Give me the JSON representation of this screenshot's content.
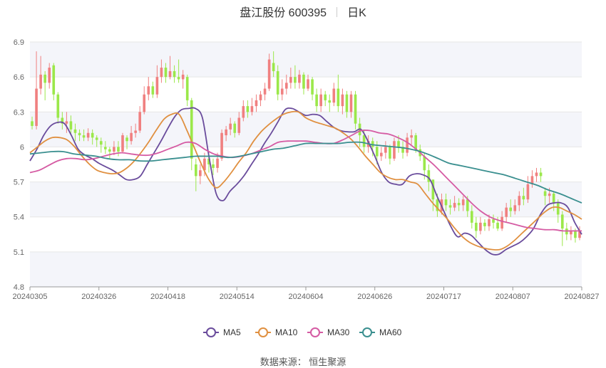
{
  "header": {
    "stock_name_code": "盘江股份 600395",
    "period": "日K"
  },
  "footer": {
    "source": "数据来源： 恒生聚源"
  },
  "colors": {
    "up": "#f08080",
    "down": "#9be84a",
    "ma5": "#6a4c9c",
    "ma10": "#e09040",
    "ma30": "#d55ba3",
    "ma60": "#3a8f8f"
  },
  "chart_data": {
    "type": "candlestick",
    "ylim": [
      4.8,
      6.9
    ],
    "yticks": [
      4.8,
      5.1,
      5.4,
      5.7,
      6,
      6.3,
      6.6,
      6.9
    ],
    "xticks": [
      "20240305",
      "20240326",
      "20240418",
      "20240514",
      "20240604",
      "20240626",
      "20240717",
      "20240807",
      "20240827"
    ],
    "legend": [
      "MA5",
      "MA10",
      "MA30",
      "MA60"
    ],
    "candles": [
      [
        6.22,
        6.18,
        6.26,
        6.15
      ],
      [
        6.18,
        6.5,
        6.82,
        6.15
      ],
      [
        6.5,
        6.62,
        6.78,
        6.45
      ],
      [
        6.62,
        6.55,
        6.65,
        6.4
      ],
      [
        6.55,
        6.68,
        6.72,
        6.5
      ],
      [
        6.7,
        6.45,
        6.72,
        6.4
      ],
      [
        6.45,
        6.25,
        6.47,
        6.2
      ],
      [
        6.25,
        6.2,
        6.3,
        6.15
      ],
      [
        6.2,
        6.22,
        6.3,
        6.12
      ],
      [
        6.22,
        6.15,
        6.27,
        6.1
      ],
      [
        6.15,
        6.12,
        6.2,
        6.05
      ],
      [
        6.12,
        6.1,
        6.15,
        6.05
      ],
      [
        6.1,
        6.08,
        6.15,
        6.05
      ],
      [
        6.08,
        6.12,
        6.16,
        6.05
      ],
      [
        6.12,
        6.08,
        6.15,
        6.02
      ],
      [
        6.08,
        6.06,
        6.1,
        6.0
      ],
      [
        6.05,
        6.02,
        6.08,
        5.95
      ],
      [
        6.0,
        5.98,
        6.05,
        5.94
      ],
      [
        5.98,
        5.96,
        6.0,
        5.9
      ],
      [
        5.96,
        6.0,
        6.05,
        5.93
      ],
      [
        6.0,
        5.96,
        6.05,
        5.92
      ],
      [
        5.96,
        6.1,
        6.12,
        5.95
      ],
      [
        6.08,
        6.05,
        6.1,
        5.98
      ],
      [
        6.05,
        6.12,
        6.18,
        6.02
      ],
      [
        6.12,
        6.14,
        6.2,
        6.08
      ],
      [
        6.14,
        6.3,
        6.35,
        6.12
      ],
      [
        6.3,
        6.45,
        6.52,
        6.28
      ],
      [
        6.45,
        6.52,
        6.6,
        6.4
      ],
      [
        6.52,
        6.45,
        6.56,
        6.42
      ],
      [
        6.45,
        6.6,
        6.7,
        6.42
      ],
      [
        6.6,
        6.68,
        6.75,
        6.55
      ],
      [
        6.68,
        6.6,
        6.72,
        6.55
      ],
      [
        6.6,
        6.65,
        6.78,
        6.58
      ],
      [
        6.65,
        6.6,
        6.7,
        6.55
      ],
      [
        6.6,
        6.58,
        6.75,
        6.55
      ],
      [
        6.58,
        6.62,
        6.66,
        6.5
      ],
      [
        6.6,
        6.4,
        6.62,
        6.35
      ],
      [
        6.4,
        5.9,
        6.42,
        5.8
      ],
      [
        5.85,
        5.75,
        5.9,
        5.62
      ],
      [
        5.75,
        5.8,
        5.85,
        5.68
      ],
      [
        5.8,
        5.9,
        5.95,
        5.75
      ],
      [
        5.9,
        5.85,
        5.95,
        5.78
      ],
      [
        5.85,
        5.82,
        5.9,
        5.76
      ],
      [
        5.82,
        5.9,
        5.95,
        5.78
      ],
      [
        5.9,
        6.12,
        6.15,
        5.88
      ],
      [
        6.1,
        6.15,
        6.18,
        6.05
      ],
      [
        6.15,
        6.2,
        6.25,
        6.1
      ],
      [
        6.2,
        6.12,
        6.22,
        6.08
      ],
      [
        6.12,
        6.25,
        6.3,
        6.1
      ],
      [
        6.25,
        6.35,
        6.4,
        6.22
      ],
      [
        6.35,
        6.3,
        6.4,
        6.25
      ],
      [
        6.3,
        6.35,
        6.42,
        6.27
      ],
      [
        6.35,
        6.4,
        6.45,
        6.3
      ],
      [
        6.4,
        6.45,
        6.48,
        6.35
      ],
      [
        6.45,
        6.5,
        6.55,
        6.4
      ],
      [
        6.5,
        6.75,
        6.8,
        6.48
      ],
      [
        6.72,
        6.65,
        6.82,
        6.6
      ],
      [
        6.65,
        6.45,
        6.7,
        6.4
      ],
      [
        6.45,
        6.5,
        6.58,
        6.4
      ],
      [
        6.5,
        6.55,
        6.62,
        6.45
      ],
      [
        6.55,
        6.6,
        6.68,
        6.5
      ],
      [
        6.6,
        6.55,
        6.7,
        6.5
      ],
      [
        6.55,
        6.62,
        6.66,
        6.5
      ],
      [
        6.62,
        6.5,
        6.64,
        6.45
      ],
      [
        6.5,
        6.58,
        6.62,
        6.48
      ],
      [
        6.58,
        6.45,
        6.6,
        6.4
      ],
      [
        6.45,
        6.35,
        6.5,
        6.3
      ],
      [
        6.35,
        6.45,
        6.5,
        6.3
      ],
      [
        6.45,
        6.4,
        6.48,
        6.35
      ],
      [
        6.4,
        6.38,
        6.45,
        6.3
      ],
      [
        6.38,
        6.5,
        6.55,
        6.35
      ],
      [
        6.5,
        6.35,
        6.62,
        6.3
      ],
      [
        6.35,
        6.45,
        6.5,
        6.28
      ],
      [
        6.45,
        6.3,
        6.48,
        6.25
      ],
      [
        6.3,
        6.45,
        6.48,
        6.25
      ],
      [
        6.45,
        6.2,
        6.48,
        6.15
      ],
      [
        6.2,
        6.1,
        6.25,
        6.0
      ],
      [
        6.1,
        6.0,
        6.15,
        5.95
      ],
      [
        6.0,
        6.05,
        6.1,
        5.95
      ],
      [
        6.05,
        6.0,
        6.08,
        5.92
      ],
      [
        6.0,
        5.92,
        6.05,
        5.85
      ],
      [
        5.92,
        5.95,
        6.0,
        5.88
      ],
      [
        5.95,
        6.0,
        6.05,
        5.9
      ],
      [
        6.0,
        5.9,
        6.02,
        5.85
      ],
      [
        5.9,
        6.05,
        6.08,
        5.88
      ],
      [
        6.05,
        6.0,
        6.1,
        5.95
      ],
      [
        6.0,
        5.95,
        6.05,
        5.9
      ],
      [
        5.95,
        6.08,
        6.12,
        5.92
      ],
      [
        6.08,
        6.1,
        6.15,
        6.02
      ],
      [
        6.1,
        5.98,
        6.12,
        5.95
      ],
      [
        5.98,
        5.92,
        6.02,
        5.88
      ],
      [
        5.92,
        5.8,
        5.95,
        5.72
      ],
      [
        5.8,
        5.7,
        5.85,
        5.62
      ],
      [
        5.72,
        5.55,
        5.72,
        5.45
      ],
      [
        5.55,
        5.45,
        5.6,
        5.4
      ],
      [
        5.45,
        5.55,
        5.6,
        5.42
      ],
      [
        5.55,
        5.5,
        5.6,
        5.45
      ],
      [
        5.5,
        5.48,
        5.55,
        5.42
      ],
      [
        5.48,
        5.52,
        5.58,
        5.45
      ],
      [
        5.52,
        5.5,
        5.56,
        5.45
      ],
      [
        5.5,
        5.55,
        5.58,
        5.45
      ],
      [
        5.55,
        5.45,
        5.58,
        5.4
      ],
      [
        5.45,
        5.35,
        5.5,
        5.3
      ],
      [
        5.35,
        5.28,
        5.4,
        5.22
      ],
      [
        5.28,
        5.35,
        5.4,
        5.25
      ],
      [
        5.35,
        5.32,
        5.38,
        5.28
      ],
      [
        5.32,
        5.38,
        5.42,
        5.28
      ],
      [
        5.38,
        5.35,
        5.42,
        5.3
      ],
      [
        5.35,
        5.3,
        5.4,
        5.28
      ],
      [
        5.3,
        5.4,
        5.45,
        5.28
      ],
      [
        5.4,
        5.48,
        5.52,
        5.35
      ],
      [
        5.48,
        5.45,
        5.55,
        5.4
      ],
      [
        5.45,
        5.5,
        5.55,
        5.42
      ],
      [
        5.5,
        5.58,
        5.62,
        5.45
      ],
      [
        5.58,
        5.55,
        5.65,
        5.5
      ],
      [
        5.55,
        5.68,
        5.75,
        5.52
      ],
      [
        5.68,
        5.75,
        5.8,
        5.65
      ],
      [
        5.75,
        5.78,
        5.82,
        5.7
      ],
      [
        5.78,
        5.75,
        5.82,
        5.7
      ],
      [
        5.62,
        5.58,
        5.65,
        5.5
      ],
      [
        5.58,
        5.6,
        5.65,
        5.52
      ],
      [
        5.6,
        5.52,
        5.62,
        5.45
      ],
      [
        5.52,
        5.42,
        5.55,
        5.35
      ],
      [
        5.42,
        5.3,
        5.45,
        5.15
      ],
      [
        5.3,
        5.25,
        5.35,
        5.2
      ],
      [
        5.25,
        5.28,
        5.32,
        5.2
      ],
      [
        5.28,
        5.22,
        5.3,
        5.18
      ],
      [
        5.22,
        5.28,
        5.32,
        5.2
      ]
    ],
    "series": [
      {
        "name": "MA5",
        "values": [
          5.88,
          5.98,
          6.1,
          6.18,
          6.21,
          6.2,
          6.1,
          5.98,
          5.93,
          5.9,
          5.86,
          5.83,
          5.8,
          5.76,
          5.72,
          5.72,
          5.75,
          5.85,
          5.95,
          6.05,
          6.16,
          6.26,
          6.32,
          6.33,
          6.33,
          6.25,
          5.9,
          5.6,
          5.54,
          5.62,
          5.68,
          5.75,
          5.84,
          5.93,
          6.03,
          6.12,
          6.22,
          6.32,
          6.33,
          6.3,
          6.27,
          6.28,
          6.27,
          6.22,
          6.17,
          6.14,
          6.13,
          6.13,
          6.15,
          6.05,
          5.92,
          5.78,
          5.7,
          5.68,
          5.68,
          5.75,
          5.77,
          5.76,
          5.72,
          5.58,
          5.45,
          5.32,
          5.23,
          5.26,
          5.24,
          5.18,
          5.12,
          5.08,
          5.08,
          5.12,
          5.15,
          5.18,
          5.23,
          5.3,
          5.42,
          5.5,
          5.52,
          5.52,
          5.48,
          5.35,
          5.25
        ]
      },
      {
        "name": "MA10",
        "values": [
          5.95,
          6.0,
          6.05,
          6.08,
          6.08,
          6.06,
          6.0,
          5.92,
          5.85,
          5.8,
          5.78,
          5.77,
          5.78,
          5.82,
          5.88,
          5.96,
          6.05,
          6.15,
          6.24,
          6.28,
          6.28,
          6.15,
          6.0,
          5.85,
          5.72,
          5.65,
          5.7,
          5.78,
          5.87,
          5.95,
          6.05,
          6.13,
          6.19,
          6.24,
          6.28,
          6.3,
          6.3,
          6.25,
          6.22,
          6.2,
          6.18,
          6.16,
          6.12,
          6.07,
          6.0,
          5.92,
          5.85,
          5.78,
          5.74,
          5.72,
          5.72,
          5.7,
          5.68,
          5.6,
          5.52,
          5.45,
          5.38,
          5.3,
          5.23,
          5.18,
          5.15,
          5.13,
          5.12,
          5.12,
          5.15,
          5.2,
          5.26,
          5.32,
          5.38,
          5.44,
          5.48,
          5.48,
          5.45,
          5.42,
          5.38
        ]
      },
      {
        "name": "MA30",
        "values": [
          5.78,
          5.8,
          5.84,
          5.88,
          5.9,
          5.9,
          5.89,
          5.9,
          5.92,
          5.94,
          5.95,
          5.94,
          5.93,
          5.93,
          5.95,
          5.98,
          6.01,
          6.04,
          6.03,
          5.98,
          5.94,
          5.92,
          5.91,
          5.92,
          5.94,
          5.97,
          6.0,
          6.04,
          6.05,
          6.05,
          6.05,
          6.04,
          6.03,
          6.03,
          6.06,
          6.1,
          6.14,
          6.14,
          6.12,
          6.11,
          6.08,
          6.04,
          5.98,
          5.91,
          5.84,
          5.76,
          5.68,
          5.6,
          5.52,
          5.45,
          5.4,
          5.37,
          5.35,
          5.33,
          5.31,
          5.3,
          5.29,
          5.29,
          5.28,
          5.28,
          5.28
        ]
      },
      {
        "name": "MA60",
        "values": [
          5.94,
          5.95,
          5.96,
          5.96,
          5.94,
          5.93,
          5.92,
          5.9,
          5.89,
          5.89,
          5.88,
          5.88,
          5.89,
          5.9,
          5.91,
          5.92,
          5.92,
          5.92,
          5.91,
          5.92,
          5.94,
          5.96,
          5.98,
          5.99,
          6.01,
          6.03,
          6.03,
          6.03,
          6.03,
          6.04,
          6.04,
          6.02,
          6.01,
          6.0,
          5.99,
          5.97,
          5.94,
          5.9,
          5.86,
          5.84,
          5.82,
          5.8,
          5.78,
          5.76,
          5.73,
          5.7,
          5.67,
          5.63,
          5.6,
          5.56,
          5.52
        ]
      }
    ]
  }
}
